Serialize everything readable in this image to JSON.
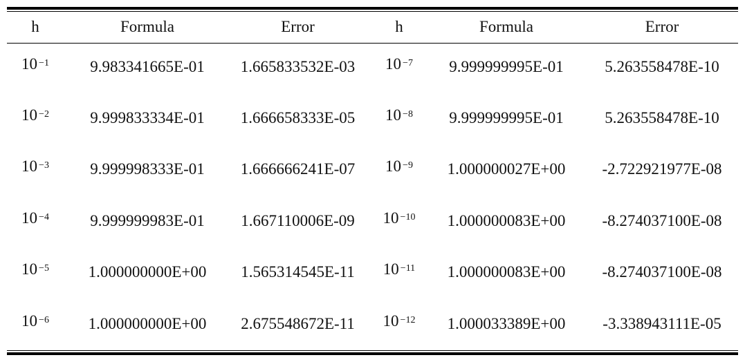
{
  "table": {
    "headers": [
      "h",
      "Formula",
      "Error",
      "h",
      "Formula",
      "Error"
    ],
    "rows": [
      {
        "h1_base": "10",
        "h1_exp": "−1",
        "f1": "9.983341665E-01",
        "e1": "1.665833532E-03",
        "h2_base": "10",
        "h2_exp": "−7",
        "f2": "9.999999995E-01",
        "e2": "5.263558478E-10"
      },
      {
        "h1_base": "10",
        "h1_exp": "−2",
        "f1": "9.999833334E-01",
        "e1": "1.666658333E-05",
        "h2_base": "10",
        "h2_exp": "−8",
        "f2": "9.999999995E-01",
        "e2": "5.263558478E-10"
      },
      {
        "h1_base": "10",
        "h1_exp": "−3",
        "f1": "9.999998333E-01",
        "e1": "1.666666241E-07",
        "h2_base": "10",
        "h2_exp": "−9",
        "f2": "1.000000027E+00",
        "e2": "-2.722921977E-08"
      },
      {
        "h1_base": "10",
        "h1_exp": "−4",
        "f1": "9.999999983E-01",
        "e1": "1.667110006E-09",
        "h2_base": "10",
        "h2_exp": "−10",
        "f2": "1.000000083E+00",
        "e2": "-8.274037100E-08"
      },
      {
        "h1_base": "10",
        "h1_exp": "−5",
        "f1": "1.000000000E+00",
        "e1": "1.565314545E-11",
        "h2_base": "10",
        "h2_exp": "−11",
        "f2": "1.000000083E+00",
        "e2": "-8.274037100E-08"
      },
      {
        "h1_base": "10",
        "h1_exp": "−6",
        "f1": "1.000000000E+00",
        "e1": "2.675548672E-11",
        "h2_base": "10",
        "h2_exp": "−12",
        "f2": "1.000033389E+00",
        "e2": "-3.338943111E-05"
      }
    ]
  }
}
